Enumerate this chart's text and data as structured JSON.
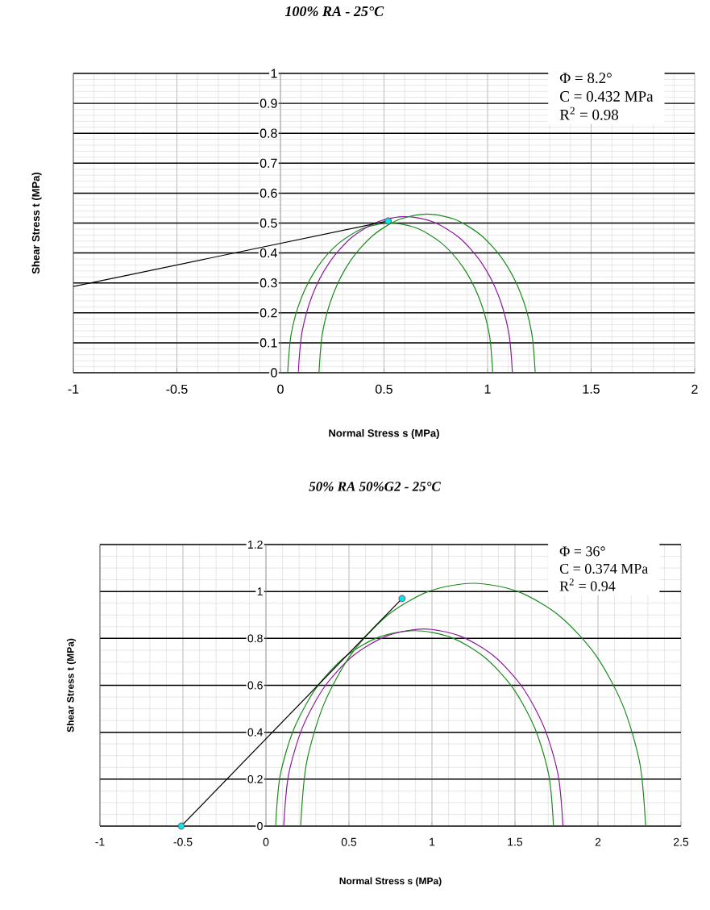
{
  "chart_data": [
    {
      "type": "line",
      "title": "100% RA - 25°C",
      "xlabel": "Normal Stress s (MPa)",
      "ylabel": "Shear Stress t (MPa)",
      "annotations": [
        "Φ = 8.2°",
        "C = 0.432 MPa",
        "R$^{2}$ = 0.98"
      ],
      "xlim": [
        -1,
        2
      ],
      "ylim": [
        0,
        1
      ],
      "xticks": [
        -1,
        -0.5,
        0,
        0.5,
        1,
        1.5,
        2
      ],
      "yticks": [
        0,
        0.1,
        0.2,
        0.3,
        0.4,
        0.5,
        0.6,
        0.7,
        0.8,
        0.9,
        1
      ],
      "grid": true,
      "series": [
        {
          "color": "#1a8c1a",
          "x": [
            1.025,
            1.008,
            0.959,
            0.88,
            0.778,
            0.658,
            0.53,
            0.402,
            0.282,
            0.18,
            0.101,
            0.052,
            0.035
          ],
          "values": [
            0,
            0.13,
            0.25,
            0.354,
            0.433,
            0.483,
            0.5,
            0.483,
            0.433,
            0.354,
            0.25,
            0.13,
            0
          ]
        },
        {
          "color": "#8b1a9a",
          "x": [
            1.12,
            1.102,
            1.051,
            0.969,
            0.862,
            0.737,
            0.603,
            0.469,
            0.344,
            0.237,
            0.155,
            0.104,
            0.086
          ],
          "values": [
            0,
            0.135,
            0.261,
            0.369,
            0.452,
            0.504,
            0.522,
            0.504,
            0.452,
            0.369,
            0.261,
            0.135,
            0
          ]
        },
        {
          "color": "#1a8c1a",
          "x": [
            1.23,
            1.212,
            1.16,
            1.077,
            0.969,
            0.843,
            0.708,
            0.573,
            0.447,
            0.339,
            0.256,
            0.204,
            0.186
          ],
          "values": [
            0,
            0.137,
            0.265,
            0.375,
            0.459,
            0.512,
            0.53,
            0.512,
            0.459,
            0.375,
            0.265,
            0.137,
            0
          ]
        },
        {
          "color": "#000000",
          "x": [
            -1,
            0.52
          ],
          "values": [
            0.288,
            0.507
          ]
        },
        {
          "type": "scatter",
          "marker": "circle",
          "color": "#00e5ee",
          "x": [
            0.52
          ],
          "values": [
            0.507
          ]
        }
      ]
    },
    {
      "type": "line",
      "title": "50% RA  50%G2 - 25°C",
      "xlabel": "Normal Stress s (MPa)",
      "ylabel": "Shear Stress t (MPa)",
      "annotations": [
        "Φ = 36°",
        "C = 0.374 MPa",
        "R$^{2}$ = 0.94"
      ],
      "xlim": [
        -1,
        2.5
      ],
      "ylim": [
        0,
        1.2
      ],
      "xticks": [
        -1,
        -0.5,
        0,
        0.5,
        1,
        1.5,
        2,
        2.5
      ],
      "yticks": [
        0,
        0.2,
        0.4,
        0.6,
        0.8,
        1,
        1.2
      ],
      "grid": true,
      "series": [
        {
          "color": "#1a8c1a",
          "x": [
            1.732,
            1.704,
            1.62,
            1.487,
            1.314,
            1.112,
            0.895,
            0.678,
            0.476,
            0.303,
            0.17,
            0.086,
            0.058
          ],
          "values": [
            0,
            0.216,
            0.417,
            0.589,
            0.721,
            0.805,
            0.833,
            0.805,
            0.721,
            0.589,
            0.417,
            0.216,
            0
          ]
        },
        {
          "color": "#8b1a9a",
          "x": [
            1.789,
            1.76,
            1.676,
            1.543,
            1.369,
            1.166,
            0.948,
            0.73,
            0.527,
            0.353,
            0.22,
            0.136,
            0.107
          ],
          "values": [
            0,
            0.218,
            0.42,
            0.594,
            0.727,
            0.811,
            0.84,
            0.811,
            0.727,
            0.594,
            0.42,
            0.218,
            0
          ]
        },
        {
          "color": "#1a8c1a",
          "x": [
            2.287,
            2.252,
            2.148,
            1.983,
            1.768,
            1.517,
            1.248,
            0.979,
            0.728,
            0.513,
            0.348,
            0.244,
            0.209
          ],
          "values": [
            0,
            0.268,
            0.518,
            0.732,
            0.896,
            1.0,
            1.035,
            1.0,
            0.896,
            0.732,
            0.518,
            0.268,
            0
          ]
        },
        {
          "color": "#000000",
          "x": [
            -0.51,
            0.82
          ],
          "values": [
            0,
            0.97
          ]
        },
        {
          "type": "scatter",
          "marker": "circle",
          "color": "#00e5ee",
          "x": [
            -0.51,
            0.82
          ],
          "values": [
            0,
            0.97
          ]
        }
      ]
    }
  ]
}
